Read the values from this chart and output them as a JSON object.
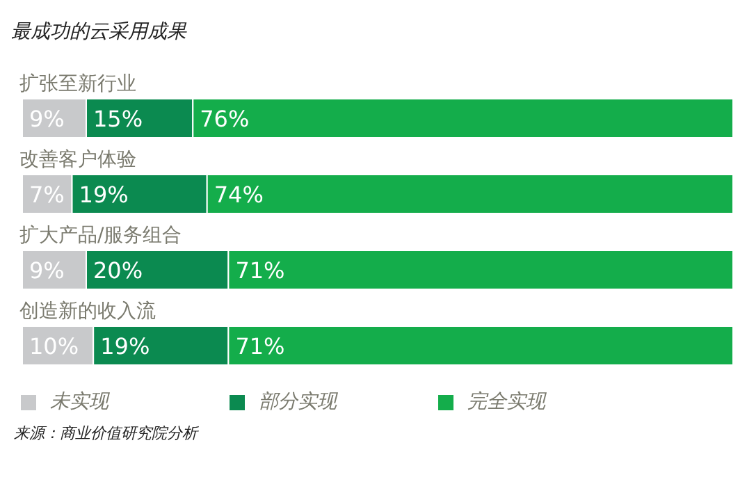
{
  "chart_data": {
    "type": "bar",
    "orientation": "horizontal",
    "stacked": true,
    "title": "最成功的云采用成果",
    "categories": [
      "扩张至新行业",
      "改善客户体验",
      "扩大产品/服务组合",
      "创造新的收入流"
    ],
    "series": [
      {
        "name": "未实现",
        "color": "#c8c9cb",
        "values": [
          9,
          7,
          9,
          10
        ],
        "value_labels": [
          "9%",
          "7%",
          "9%",
          "10%"
        ]
      },
      {
        "name": "部分实现",
        "color": "#0b8a50",
        "values": [
          15,
          19,
          20,
          19
        ],
        "value_labels": [
          "15%",
          "19%",
          "20%",
          "19%"
        ]
      },
      {
        "name": "完全实现",
        "color": "#14ad4b",
        "values": [
          76,
          74,
          71,
          71
        ],
        "value_labels": [
          "76%",
          "74%",
          "71%",
          "71%"
        ]
      }
    ],
    "legend": "bottom",
    "annotations": [
      "来源：商业价值研究院分析"
    ]
  }
}
